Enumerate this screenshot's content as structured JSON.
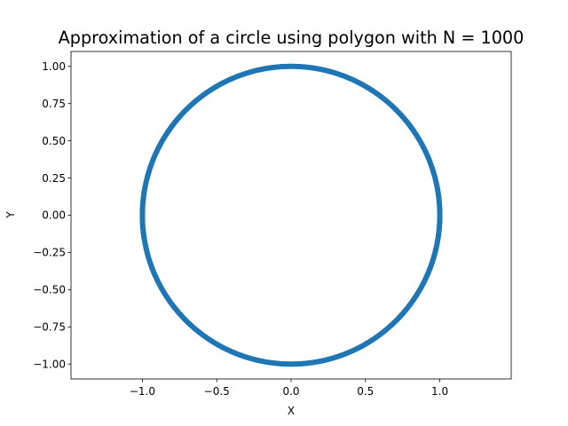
{
  "chart_data": {
    "type": "scatter",
    "title": "Approximation of a circle using polygon with N = 1000",
    "xlabel": "X",
    "ylabel": "Y",
    "xlim": [
      -1.48,
      1.48
    ],
    "ylim": [
      -1.1,
      1.1
    ],
    "xticks": [
      -1.0,
      -0.5,
      0.0,
      0.5,
      1.0
    ],
    "xtick_labels": [
      "−1.0",
      "−0.5",
      "0.0",
      "0.5",
      "1.0"
    ],
    "yticks": [
      -1.0,
      -0.75,
      -0.5,
      -0.25,
      0.0,
      0.25,
      0.5,
      0.75,
      1.0
    ],
    "ytick_labels": [
      "−1.00",
      "−0.75",
      "−0.50",
      "−0.25",
      "0.00",
      "0.25",
      "0.50",
      "0.75",
      "1.00"
    ],
    "grid": false,
    "series": [
      {
        "color": "#1f77b4",
        "shape": "circle",
        "center": [
          0,
          0
        ],
        "radius": 1.0,
        "n_points": 1000
      }
    ]
  }
}
